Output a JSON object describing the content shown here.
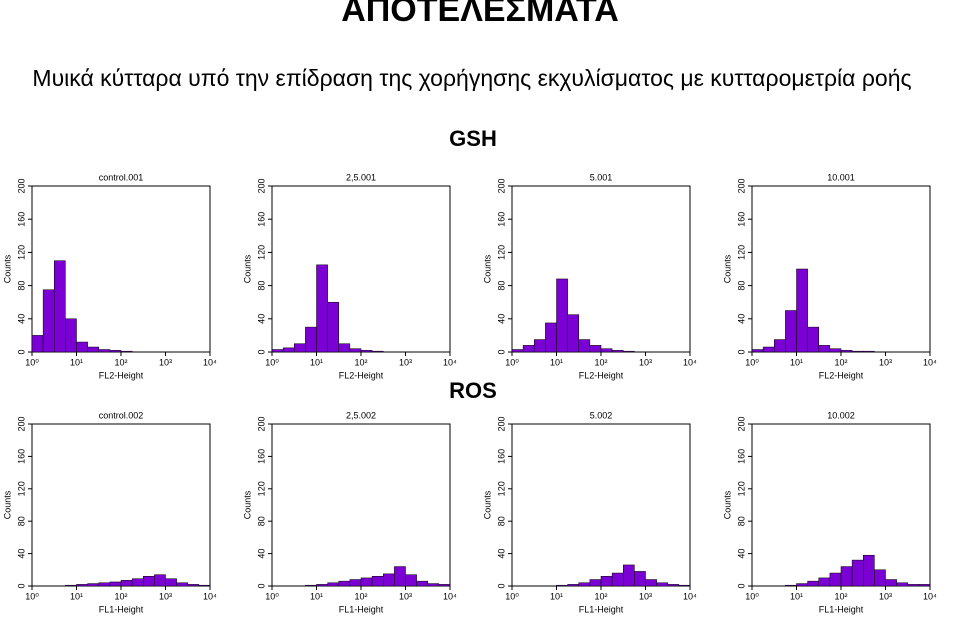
{
  "slide": {
    "title": "ΑΠΟΤΕΛΕΣΜΑΤΑ",
    "subtitle": "Μυικά κύτταρα υπό την επίδραση της χορήγησης εκχυλίσματος με κυτταρομετρία ροής",
    "groups": [
      "GSH",
      "ROS"
    ]
  },
  "chart_data": [
    {
      "type": "histogram",
      "title": "control.001",
      "xlabel": "FL2-Height",
      "ylabel": "Counts",
      "log_x": true,
      "color": "#7b00d4",
      "xlim": [
        1,
        10000
      ],
      "xticks": [
        {
          "value": 1,
          "label": "10⁰"
        },
        {
          "value": 10,
          "label": "10¹"
        },
        {
          "value": 100,
          "label": "10²"
        },
        {
          "value": 1000,
          "label": "10³"
        },
        {
          "value": 10000,
          "label": "10⁴"
        }
      ],
      "ylim": [
        0,
        200
      ],
      "yticks": [
        0,
        40,
        80,
        120,
        160,
        200
      ],
      "bins": [
        1,
        1.778,
        3.162,
        5.623,
        10,
        17.78,
        31.62,
        56.23,
        100,
        177.8,
        316.2,
        562.3,
        1000,
        1778,
        3162,
        5623,
        10000
      ],
      "values": [
        20,
        75,
        110,
        40,
        12,
        6,
        3,
        2,
        1,
        0,
        0,
        0,
        0,
        0,
        0,
        0
      ]
    },
    {
      "type": "histogram",
      "title": "2,5.001",
      "xlabel": "FL2-Height",
      "ylabel": "Counts",
      "log_x": true,
      "color": "#7b00d4",
      "xlim": [
        1,
        10000
      ],
      "xticks": [
        {
          "value": 1,
          "label": "10⁰"
        },
        {
          "value": 10,
          "label": "10¹"
        },
        {
          "value": 100,
          "label": "10²"
        },
        {
          "value": 1000,
          "label": "10³"
        },
        {
          "value": 10000,
          "label": "10⁴"
        }
      ],
      "ylim": [
        0,
        200
      ],
      "yticks": [
        0,
        40,
        80,
        120,
        160,
        200
      ],
      "bins": [
        1,
        1.778,
        3.162,
        5.623,
        10,
        17.78,
        31.62,
        56.23,
        100,
        177.8,
        316.2,
        562.3,
        1000,
        1778,
        3162,
        5623,
        10000
      ],
      "values": [
        3,
        5,
        10,
        30,
        105,
        60,
        10,
        4,
        2,
        1,
        0,
        0,
        0,
        0,
        0,
        0
      ]
    },
    {
      "type": "histogram",
      "title": "5.001",
      "xlabel": "FL2-Height",
      "ylabel": "Counts",
      "log_x": true,
      "color": "#7b00d4",
      "xlim": [
        1,
        10000
      ],
      "xticks": [
        {
          "value": 1,
          "label": "10⁰"
        },
        {
          "value": 10,
          "label": "10¹"
        },
        {
          "value": 100,
          "label": "10²"
        },
        {
          "value": 1000,
          "label": "10³"
        },
        {
          "value": 10000,
          "label": "10⁴"
        }
      ],
      "ylim": [
        0,
        200
      ],
      "yticks": [
        0,
        40,
        80,
        120,
        160,
        200
      ],
      "bins": [
        1,
        1.778,
        3.162,
        5.623,
        10,
        17.78,
        31.62,
        56.23,
        100,
        177.8,
        316.2,
        562.3,
        1000,
        1778,
        3162,
        5623,
        10000
      ],
      "values": [
        3,
        8,
        15,
        35,
        88,
        45,
        15,
        8,
        4,
        2,
        1,
        0,
        0,
        0,
        0,
        0
      ]
    },
    {
      "type": "histogram",
      "title": "10.001",
      "xlabel": "FL2-Height",
      "ylabel": "Counts",
      "log_x": true,
      "color": "#7b00d4",
      "xlim": [
        1,
        10000
      ],
      "xticks": [
        {
          "value": 1,
          "label": "10⁰"
        },
        {
          "value": 10,
          "label": "10¹"
        },
        {
          "value": 100,
          "label": "10²"
        },
        {
          "value": 1000,
          "label": "10³"
        },
        {
          "value": 10000,
          "label": "10⁴"
        }
      ],
      "ylim": [
        0,
        200
      ],
      "yticks": [
        0,
        40,
        80,
        120,
        160,
        200
      ],
      "bins": [
        1,
        1.778,
        3.162,
        5.623,
        10,
        17.78,
        31.62,
        56.23,
        100,
        177.8,
        316.2,
        562.3,
        1000,
        1778,
        3162,
        5623,
        10000
      ],
      "values": [
        3,
        6,
        15,
        50,
        100,
        30,
        8,
        4,
        2,
        1,
        1,
        0,
        0,
        0,
        0,
        0
      ]
    },
    {
      "type": "histogram",
      "title": "control.002",
      "xlabel": "FL1-Height",
      "ylabel": "Counts",
      "log_x": true,
      "color": "#7b00d4",
      "xlim": [
        1,
        10000
      ],
      "xticks": [
        {
          "value": 1,
          "label": "10⁰"
        },
        {
          "value": 10,
          "label": "10¹"
        },
        {
          "value": 100,
          "label": "10²"
        },
        {
          "value": 1000,
          "label": "10³"
        },
        {
          "value": 10000,
          "label": "10⁴"
        }
      ],
      "ylim": [
        0,
        200
      ],
      "yticks": [
        0,
        40,
        80,
        120,
        160,
        200
      ],
      "bins": [
        1,
        1.778,
        3.162,
        5.623,
        10,
        17.78,
        31.62,
        56.23,
        100,
        177.8,
        316.2,
        562.3,
        1000,
        1778,
        3162,
        5623,
        10000
      ],
      "values": [
        0,
        0,
        0,
        1,
        2,
        3,
        4,
        5,
        7,
        9,
        12,
        14,
        9,
        4,
        2,
        1
      ]
    },
    {
      "type": "histogram",
      "title": "2,5.002",
      "xlabel": "FL1-Height",
      "ylabel": "Counts",
      "log_x": true,
      "color": "#7b00d4",
      "xlim": [
        1,
        10000
      ],
      "xticks": [
        {
          "value": 1,
          "label": "10⁰"
        },
        {
          "value": 10,
          "label": "10¹"
        },
        {
          "value": 100,
          "label": "10²"
        },
        {
          "value": 1000,
          "label": "10³"
        },
        {
          "value": 10000,
          "label": "10⁴"
        }
      ],
      "ylim": [
        0,
        200
      ],
      "yticks": [
        0,
        40,
        80,
        120,
        160,
        200
      ],
      "bins": [
        1,
        1.778,
        3.162,
        5.623,
        10,
        17.78,
        31.62,
        56.23,
        100,
        177.8,
        316.2,
        562.3,
        1000,
        1778,
        3162,
        5623,
        10000
      ],
      "values": [
        0,
        0,
        0,
        1,
        2,
        4,
        6,
        8,
        10,
        12,
        15,
        24,
        14,
        6,
        3,
        2
      ]
    },
    {
      "type": "histogram",
      "title": "5.002",
      "xlabel": "FL1-Height",
      "ylabel": "Counts",
      "log_x": true,
      "color": "#7b00d4",
      "xlim": [
        1,
        10000
      ],
      "xticks": [
        {
          "value": 1,
          "label": "10⁰"
        },
        {
          "value": 10,
          "label": "10¹"
        },
        {
          "value": 100,
          "label": "10²"
        },
        {
          "value": 1000,
          "label": "10³"
        },
        {
          "value": 10000,
          "label": "10⁴"
        }
      ],
      "ylim": [
        0,
        200
      ],
      "yticks": [
        0,
        40,
        80,
        120,
        160,
        200
      ],
      "bins": [
        1,
        1.778,
        3.162,
        5.623,
        10,
        17.78,
        31.62,
        56.23,
        100,
        177.8,
        316.2,
        562.3,
        1000,
        1778,
        3162,
        5623,
        10000
      ],
      "values": [
        0,
        0,
        0,
        0,
        1,
        2,
        4,
        8,
        12,
        16,
        26,
        18,
        8,
        4,
        2,
        1
      ]
    },
    {
      "type": "histogram",
      "title": "10.002",
      "xlabel": "FL1-Height",
      "ylabel": "Counts",
      "log_x": true,
      "color": "#7b00d4",
      "xlim": [
        1,
        10000
      ],
      "xticks": [
        {
          "value": 1,
          "label": "10⁰"
        },
        {
          "value": 10,
          "label": "10¹"
        },
        {
          "value": 100,
          "label": "10²"
        },
        {
          "value": 1000,
          "label": "10³"
        },
        {
          "value": 10000,
          "label": "10⁴"
        }
      ],
      "ylim": [
        0,
        200
      ],
      "yticks": [
        0,
        40,
        80,
        120,
        160,
        200
      ],
      "bins": [
        1,
        1.778,
        3.162,
        5.623,
        10,
        17.78,
        31.62,
        56.23,
        100,
        177.8,
        316.2,
        562.3,
        1000,
        1778,
        3162,
        5623,
        10000
      ],
      "values": [
        0,
        0,
        0,
        1,
        3,
        6,
        10,
        16,
        24,
        32,
        38,
        20,
        8,
        4,
        2,
        2
      ]
    }
  ]
}
